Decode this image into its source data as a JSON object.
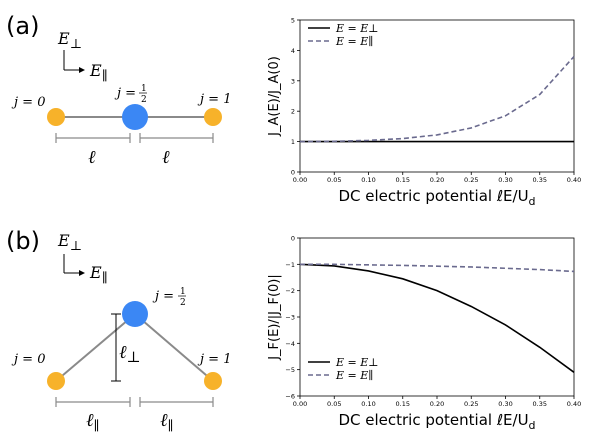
{
  "panel_a": {
    "label": "(a)",
    "axis_perp": "E",
    "axis_perp_sub": "⊥",
    "axis_par": "E",
    "axis_par_sub": "∥",
    "site_left": "j = 0",
    "site_mid": "j =",
    "site_mid_frac_num": "1",
    "site_mid_frac_den": "2",
    "site_right": "j = 1",
    "dist_left": "ℓ",
    "dist_right": "ℓ"
  },
  "panel_b": {
    "label": "(b)",
    "axis_perp": "E",
    "axis_perp_sub": "⊥",
    "axis_par": "E",
    "axis_par_sub": "∥",
    "site_left": "j = 0",
    "site_mid": "j =",
    "site_mid_frac_num": "1",
    "site_mid_frac_den": "2",
    "site_right": "j = 1",
    "height_label": "ℓ",
    "height_sub": "⊥",
    "dist_left": "ℓ",
    "dist_left_sub": "∥",
    "dist_right": "ℓ",
    "dist_right_sub": "∥"
  },
  "colors": {
    "orange": "#f7b22a",
    "blue": "#3b87f4",
    "solid_line": "#000000",
    "dashed_line": "#6a6a8e",
    "bond": "#8a8a8a"
  },
  "chart_data": [
    {
      "type": "line",
      "xlabel": "DC electric potential ℓE/U",
      "xlabel_sub": "d",
      "ylabel": "J_A(E)/J_A(0)",
      "xlim": [
        0.0,
        0.4
      ],
      "ylim": [
        0,
        5
      ],
      "xticks": [
        "0.00",
        "0.05",
        "0.10",
        "0.15",
        "0.20",
        "0.25",
        "0.30",
        "0.35",
        "0.40"
      ],
      "yticks": [
        "0",
        "1",
        "2",
        "3",
        "4",
        "5"
      ],
      "legend_position": "top-left",
      "x": [
        0.0,
        0.05,
        0.1,
        0.15,
        0.2,
        0.25,
        0.3,
        0.35,
        0.4
      ],
      "series": [
        {
          "name": "E = E⊥",
          "style": "solid",
          "values": [
            1.0,
            1.0,
            1.0,
            1.0,
            1.0,
            1.0,
            1.0,
            1.0,
            1.0
          ]
        },
        {
          "name": "E = E∥",
          "style": "dashed",
          "values": [
            1.0,
            1.01,
            1.04,
            1.1,
            1.22,
            1.45,
            1.85,
            2.55,
            3.8
          ]
        }
      ]
    },
    {
      "type": "line",
      "xlabel": "DC electric potential ℓE/U",
      "xlabel_sub": "d",
      "ylabel": "J_F(E)/|J_F(0)|",
      "xlim": [
        0.0,
        0.4
      ],
      "ylim": [
        -6,
        0
      ],
      "xticks": [
        "0.00",
        "0.05",
        "0.10",
        "0.15",
        "0.20",
        "0.25",
        "0.30",
        "0.35",
        "0.40"
      ],
      "yticks": [
        "0",
        "−1",
        "−2",
        "−3",
        "−4",
        "−5",
        "−6"
      ],
      "legend_position": "bottom-left",
      "x": [
        0.0,
        0.05,
        0.1,
        0.15,
        0.2,
        0.25,
        0.3,
        0.35,
        0.4
      ],
      "series": [
        {
          "name": "E = E⊥",
          "style": "solid",
          "values": [
            -1.0,
            -1.06,
            -1.25,
            -1.55,
            -2.0,
            -2.6,
            -3.3,
            -4.15,
            -5.1
          ]
        },
        {
          "name": "E = E∥",
          "style": "dashed",
          "values": [
            -1.0,
            -1.0,
            -1.02,
            -1.04,
            -1.07,
            -1.1,
            -1.15,
            -1.2,
            -1.27
          ]
        }
      ]
    }
  ]
}
